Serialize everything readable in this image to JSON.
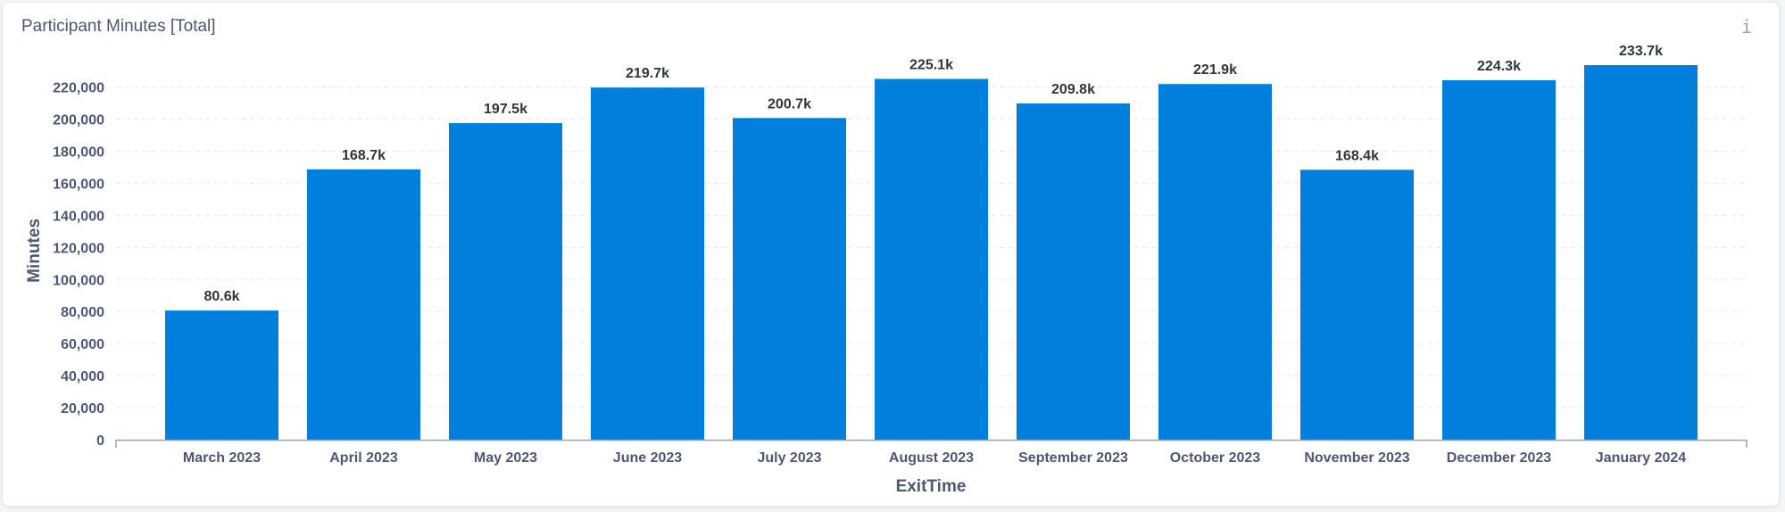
{
  "card": {
    "title": "Participant Minutes [Total]",
    "info_icon": "info-icon",
    "info_glyph": "i"
  },
  "colors": {
    "bar": "#0080dc",
    "grid": "#e8eaee",
    "axis": "#9aa2b1"
  },
  "chart_data": {
    "type": "bar",
    "title": "Participant Minutes [Total]",
    "xlabel": "ExitTime",
    "ylabel": "Minutes",
    "ylim": [
      0,
      233700
    ],
    "grid": true,
    "y_ticks": [
      0,
      20000,
      40000,
      60000,
      80000,
      100000,
      120000,
      140000,
      160000,
      180000,
      200000,
      220000
    ],
    "y_tick_labels": [
      "0",
      "20,000",
      "40,000",
      "60,000",
      "80,000",
      "100,000",
      "120,000",
      "140,000",
      "160,000",
      "180,000",
      "200,000",
      "220,000"
    ],
    "categories": [
      "March 2023",
      "April 2023",
      "May 2023",
      "June 2023",
      "July 2023",
      "August 2023",
      "September 2023",
      "October 2023",
      "November 2023",
      "December 2023",
      "January 2024"
    ],
    "values": [
      80600,
      168700,
      197500,
      219700,
      200700,
      225100,
      209800,
      221900,
      168400,
      224300,
      233700
    ],
    "data_labels": [
      "80.6k",
      "168.7k",
      "197.5k",
      "219.7k",
      "200.7k",
      "225.1k",
      "209.8k",
      "221.9k",
      "168.4k",
      "224.3k",
      "233.7k"
    ]
  }
}
